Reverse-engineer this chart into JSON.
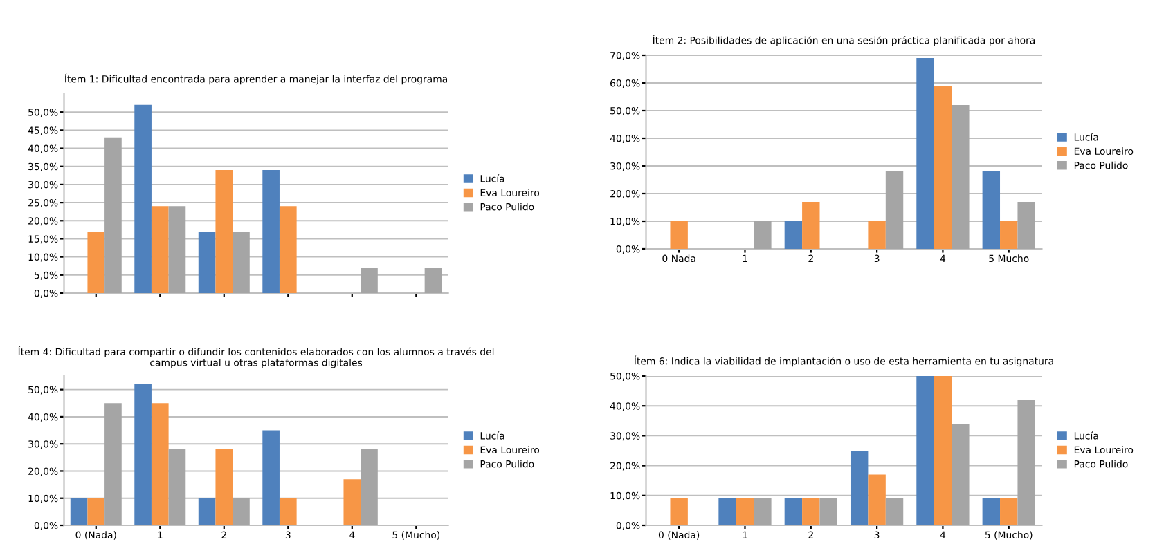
{
  "chart_data": [
    {
      "type": "bar",
      "title": "Ítem 1: Dificultad encontrada para aprender a manejar la interfaz del programa",
      "categories": [
        null,
        null,
        null,
        null,
        null,
        null
      ],
      "series": [
        {
          "name": "Lucía",
          "color": "#4f81bd",
          "values": [
            0,
            52,
            17,
            34,
            0,
            0
          ]
        },
        {
          "name": "Eva Loureiro",
          "color": "#f79646",
          "values": [
            17,
            24,
            34,
            24,
            0,
            0
          ]
        },
        {
          "name": "Paco Pulido",
          "color": "#a5a5a5",
          "values": [
            43,
            24,
            17,
            0,
            7,
            7
          ]
        }
      ],
      "ylim": [
        0,
        55
      ],
      "yticks": [
        {
          "value": 0,
          "label": "0,0%"
        },
        {
          "value": 5,
          "label": "5,0%"
        },
        {
          "value": 10,
          "label": "10,0%"
        },
        {
          "value": 15,
          "label": "15,0%"
        },
        {
          "value": 20,
          "label": "20,0%"
        },
        {
          "value": 25,
          "label": "25,0%"
        },
        {
          "value": 30,
          "label": "30,0%"
        },
        {
          "value": 35,
          "label": "35,0%"
        },
        {
          "value": 40,
          "label": "40,0%"
        },
        {
          "value": 45,
          "label": "45,0%"
        },
        {
          "value": 50,
          "label": "50,0%"
        }
      ],
      "grid": "y",
      "legend": "right"
    },
    {
      "type": "bar",
      "title": "Ítem 2: Posibilidades de aplicación en una sesión práctica planificada por ahora",
      "categories": [
        "0 Nada",
        "1",
        "2",
        "3",
        "4",
        "5 Mucho"
      ],
      "series": [
        {
          "name": "Lucía",
          "color": "#4f81bd",
          "values": [
            0,
            0,
            10,
            0,
            69,
            28
          ]
        },
        {
          "name": "Eva Loureiro",
          "color": "#f79646",
          "values": [
            10,
            0,
            17,
            10,
            59,
            10
          ]
        },
        {
          "name": "Paco Pulido",
          "color": "#a5a5a5",
          "values": [
            0,
            10,
            0,
            28,
            52,
            17
          ]
        }
      ],
      "ylim": [
        0,
        70
      ],
      "yticks": [
        {
          "value": 0,
          "label": "0,0%"
        },
        {
          "value": 10,
          "label": "10,0%"
        },
        {
          "value": 20,
          "label": "20,0%"
        },
        {
          "value": 30,
          "label": "30,0%"
        },
        {
          "value": 40,
          "label": "40,0%"
        },
        {
          "value": 50,
          "label": "50,0%"
        },
        {
          "value": 60,
          "label": "60,0%"
        },
        {
          "value": 70,
          "label": "70,0%"
        }
      ],
      "grid": "y",
      "legend": "right"
    },
    {
      "type": "bar",
      "title": "Ítem 4: Dificultad para compartir o difundir los contenidos elaborados con los alumnos a través del campus virtual u otras plataformas digitales",
      "categories": [
        "0 (Nada)",
        "1",
        "2",
        "3",
        "4",
        "5 (Mucho)"
      ],
      "series": [
        {
          "name": "Lucía",
          "color": "#4f81bd",
          "values": [
            10,
            52,
            10,
            35,
            0,
            0
          ]
        },
        {
          "name": "Eva Loureiro",
          "color": "#f79646",
          "values": [
            10,
            45,
            28,
            10,
            17,
            0
          ]
        },
        {
          "name": "Paco Pulido",
          "color": "#a5a5a5",
          "values": [
            45,
            28,
            10,
            0,
            28,
            0
          ]
        }
      ],
      "ylim": [
        0,
        55
      ],
      "yticks": [
        {
          "value": 0,
          "label": "0,0%"
        },
        {
          "value": 10,
          "label": "10,0%"
        },
        {
          "value": 20,
          "label": "20,0%"
        },
        {
          "value": 30,
          "label": "30,0%"
        },
        {
          "value": 40,
          "label": "40,0%"
        },
        {
          "value": 50,
          "label": "50,0%"
        }
      ],
      "grid": "y",
      "legend": "right"
    },
    {
      "type": "bar",
      "title": "Ítem 6: Indica la viabilidad de implantación o uso de esta herramienta en tu asignatura",
      "categories": [
        "0 (Nada)",
        "1",
        "2",
        "3",
        "4",
        "5 (Mucho)"
      ],
      "series": [
        {
          "name": "Lucía",
          "color": "#4f81bd",
          "values": [
            0,
            9,
            9,
            25,
            50,
            9
          ]
        },
        {
          "name": "Eva Loureiro",
          "color": "#f79646",
          "values": [
            9,
            9,
            9,
            17,
            50,
            9
          ]
        },
        {
          "name": "Paco Pulido",
          "color": "#a5a5a5",
          "values": [
            0,
            9,
            9,
            9,
            34,
            42
          ]
        }
      ],
      "ylim": [
        0,
        50
      ],
      "yticks": [
        {
          "value": 0,
          "label": "0,0%"
        },
        {
          "value": 10,
          "label": "10,0%"
        },
        {
          "value": 20,
          "label": "20,0%"
        },
        {
          "value": 30,
          "label": "30,0%"
        },
        {
          "value": 40,
          "label": "40,0%"
        },
        {
          "value": 50,
          "label": "50,0%"
        }
      ],
      "grid": "y",
      "legend": "right"
    }
  ]
}
